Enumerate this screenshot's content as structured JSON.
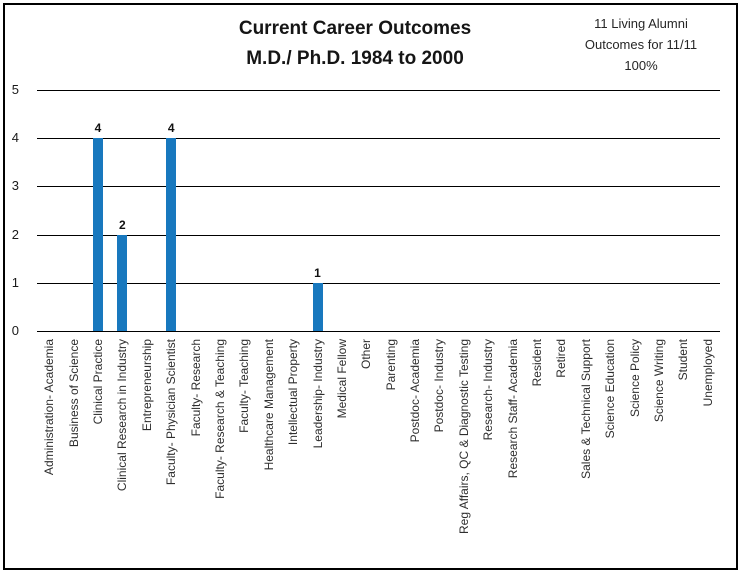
{
  "title": {
    "line1": "Current Career Outcomes",
    "line2": "M.D./ Ph.D. 1984 to 2000"
  },
  "annotation": {
    "line1": "11 Living Alumni",
    "line2": "Outcomes for 11/11",
    "line3": "100%"
  },
  "chart_data": {
    "type": "bar",
    "title": "Current Career Outcomes M.D./ Ph.D. 1984 to 2000",
    "annotation": "11 Living Alumni Outcomes for 11/11 100%",
    "categories": [
      "Administration- Academia",
      "Business of Science",
      "Clinical Practice",
      "Clinical Research in Industry",
      "Entrepreneurship",
      "Faculty- Physician Scientist",
      "Faculty- Research",
      "Faculty- Research & Teaching",
      "Faculty- Teaching",
      "Healthcare Management",
      "Intellectual Property",
      "Leadership- Industry",
      "Medical Fellow",
      "Other",
      "Parenting",
      "Postdoc- Academia",
      "Postdoc- Industry",
      "Reg Affairs, QC & Diagnostic Testing",
      "Research- Industry",
      "Research Staff- Academia",
      "Resident",
      "Retired",
      "Sales & Technical Support",
      "Science Education",
      "Science Policy",
      "Science Writing",
      "Student",
      "Unemployed"
    ],
    "values": [
      0,
      0,
      4,
      2,
      0,
      4,
      0,
      0,
      0,
      0,
      0,
      1,
      0,
      0,
      0,
      0,
      0,
      0,
      0,
      0,
      0,
      0,
      0,
      0,
      0,
      0,
      0,
      0
    ],
    "xlabel": "",
    "ylabel": "",
    "ylim": [
      0,
      5
    ],
    "yticks": [
      5,
      4,
      3,
      2,
      1,
      0
    ],
    "grid": true,
    "legend": false,
    "bar_color": "#1878BE",
    "data_label_values": {
      "Clinical Practice": 4,
      "Clinical Research in Industry": 2,
      "Faculty- Physician Scientist": 4,
      "Leadership- Industry": 1
    }
  }
}
